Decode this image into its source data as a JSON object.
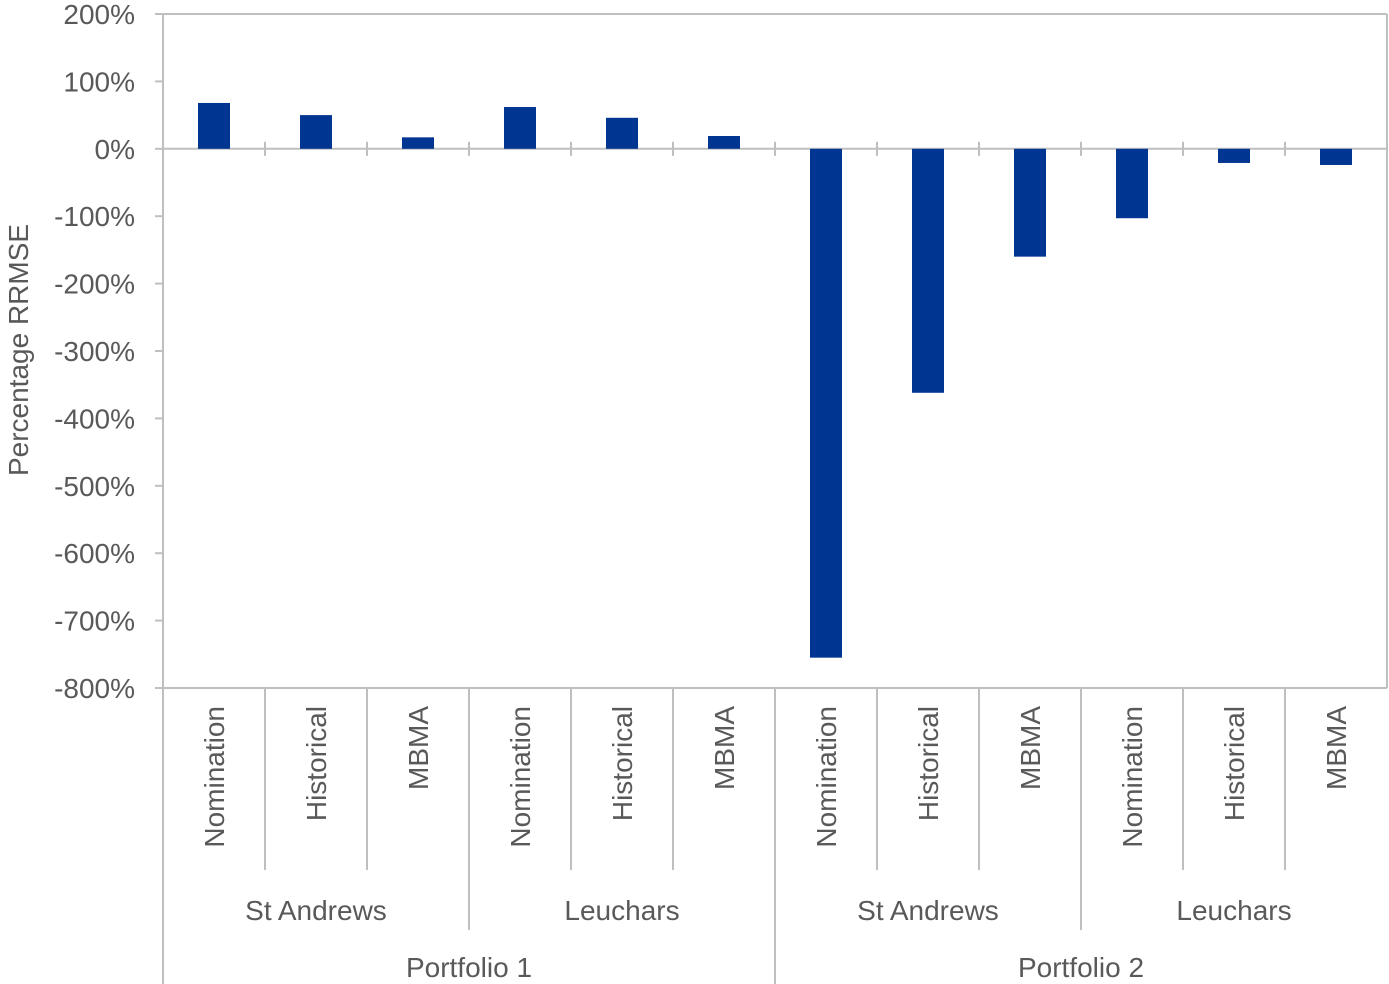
{
  "chart_data": {
    "type": "bar",
    "title": "",
    "ylabel": "Percentage RRMSE",
    "xlabel": "",
    "ylim": [
      -800,
      200
    ],
    "y_ticks": [
      "200%",
      "100%",
      "0%",
      "-100%",
      "-200%",
      "-300%",
      "-400%",
      "-500%",
      "-600%",
      "-700%",
      "-800%"
    ],
    "tick_values": [
      200,
      100,
      0,
      -100,
      -200,
      -300,
      -400,
      -500,
      -600,
      -700,
      -800
    ],
    "grid": false,
    "legend": "none",
    "bar_color": "#003591",
    "categories": [
      "Nomination",
      "Historical",
      "MBMA",
      "Nomination",
      "Historical",
      "MBMA",
      "Nomination",
      "Historical",
      "MBMA",
      "Nomination",
      "Historical",
      "MBMA"
    ],
    "values": [
      68,
      50,
      17,
      62,
      46,
      19,
      -755,
      -362,
      -160,
      -103,
      -21,
      -24
    ],
    "sites": [
      "St Andrews",
      "Leuchars",
      "St Andrews",
      "Leuchars"
    ],
    "portfolios": [
      "Portfolio 1",
      "Portfolio 2"
    ]
  }
}
